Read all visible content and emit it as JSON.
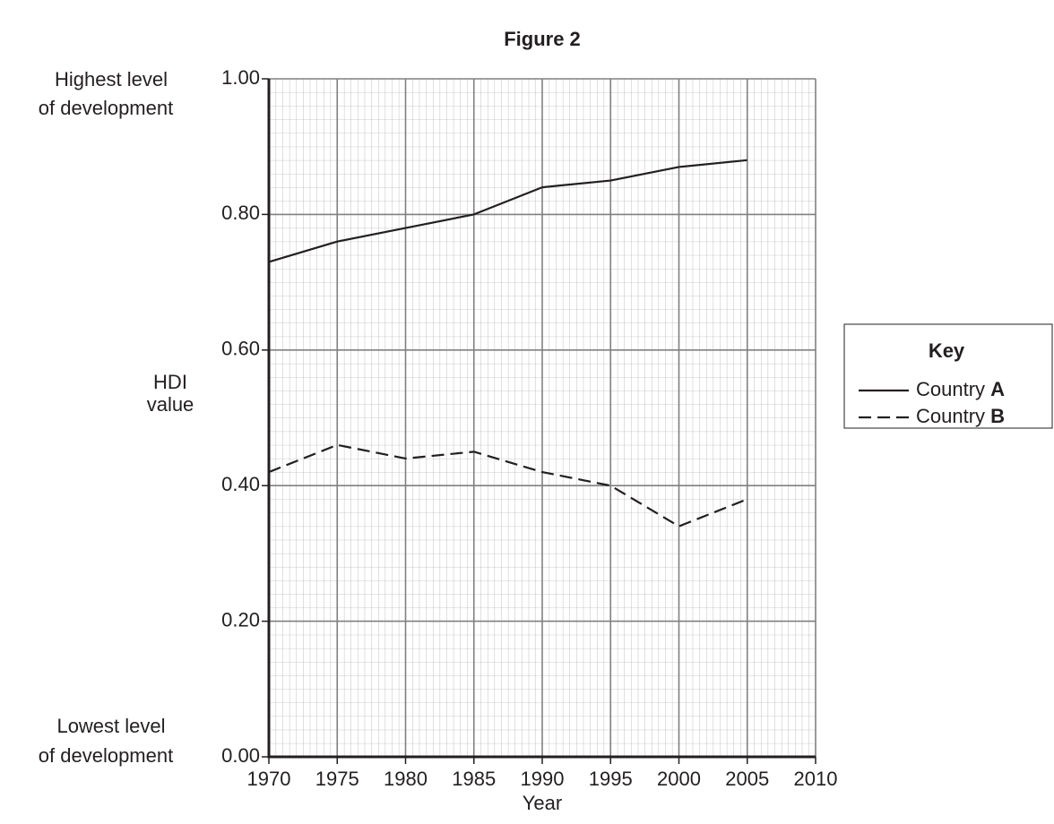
{
  "chart_data": {
    "type": "line",
    "title": "Figure 2",
    "x_label": "Year",
    "y_label": [
      "HDI",
      "value"
    ],
    "annotations": {
      "top": [
        "Highest level",
        "of development"
      ],
      "bottom": [
        "Lowest level",
        "of development"
      ]
    },
    "legend_title": "Key",
    "legend": "right",
    "grid": true,
    "x": [
      1970,
      1975,
      1980,
      1985,
      1990,
      1995,
      2000,
      2005
    ],
    "series": [
      {
        "name": "Country A",
        "color": "#231f20",
        "line_style": "solid",
        "values": [
          0.73,
          0.76,
          0.78,
          0.8,
          0.84,
          0.85,
          0.87,
          0.88
        ]
      },
      {
        "name": "Country B",
        "color": "#231f20",
        "line_style": "dashed",
        "values": [
          0.42,
          0.46,
          0.44,
          0.45,
          0.42,
          0.4,
          0.34,
          0.38
        ]
      }
    ],
    "xlim": [
      1970,
      2010
    ],
    "xticks": [
      1970,
      1975,
      1980,
      1985,
      1990,
      1995,
      2000,
      2005,
      2010
    ],
    "ylim": [
      0,
      1
    ],
    "yticks": [
      {
        "value": 0,
        "label": "0.00"
      },
      {
        "value": 0.2,
        "label": "0.20"
      },
      {
        "value": 0.4,
        "label": "0.40"
      },
      {
        "value": 0.6,
        "label": "0.60"
      },
      {
        "value": 0.8,
        "label": "0.80"
      },
      {
        "value": 1,
        "label": "1.00"
      }
    ]
  }
}
